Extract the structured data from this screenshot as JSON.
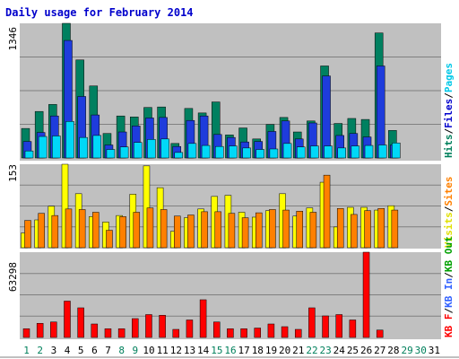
{
  "chart_data": [
    {
      "type": "bar",
      "title": "Daily usage for February 2014",
      "ymax_label": "1346",
      "ylim": [
        0,
        1346
      ],
      "categories": [
        "1",
        "2",
        "3",
        "4",
        "5",
        "6",
        "7",
        "8",
        "9",
        "10",
        "11",
        "12",
        "13",
        "14",
        "15",
        "16",
        "17",
        "18",
        "19",
        "20",
        "21",
        "22",
        "23",
        "24",
        "25",
        "26",
        "27",
        "28",
        "29",
        "30",
        "31"
      ],
      "weekend_days": [
        "1",
        "2",
        "8",
        "9",
        "15",
        "16",
        "22",
        "23",
        "29",
        "30"
      ],
      "right_labels": [
        {
          "text": "Hits",
          "color": "#00805c"
        },
        {
          "text": "/",
          "color": "#000000"
        },
        {
          "text": "Files",
          "color": "#0000cc"
        },
        {
          "text": "/",
          "color": "#000000"
        },
        {
          "text": "Pages",
          "color": "#00c8e8"
        }
      ],
      "series": [
        {
          "name": "Hits",
          "color": "#008060",
          "values": [
            295,
            465,
            535,
            1346,
            980,
            720,
            245,
            420,
            410,
            505,
            510,
            145,
            495,
            450,
            560,
            230,
            300,
            190,
            335,
            405,
            260,
            370,
            920,
            345,
            395,
            385,
            1250,
            275,
            0,
            0,
            0
          ]
        },
        {
          "name": "Files",
          "color": "#1e3cdc",
          "values": [
            165,
            255,
            420,
            1175,
            615,
            430,
            130,
            260,
            320,
            400,
            405,
            115,
            375,
            420,
            235,
            205,
            160,
            165,
            265,
            370,
            190,
            350,
            820,
            225,
            245,
            210,
            920,
            130,
            0,
            0,
            0
          ]
        },
        {
          "name": "Pages",
          "color": "#00d8f8",
          "values": [
            70,
            215,
            220,
            365,
            205,
            225,
            85,
            110,
            155,
            185,
            190,
            55,
            145,
            125,
            115,
            120,
            100,
            85,
            90,
            145,
            110,
            120,
            120,
            100,
            120,
            125,
            130,
            150,
            0,
            0,
            0
          ]
        }
      ]
    },
    {
      "type": "bar",
      "ymax_label": "153",
      "ylim": [
        0,
        153
      ],
      "right_labels": [
        {
          "text": "Visits",
          "color": "#e0e000"
        },
        {
          "text": "/",
          "color": "#000000"
        },
        {
          "text": "Sites",
          "color": "#ff8000"
        }
      ],
      "series": [
        {
          "name": "Visits",
          "color": "#ffff00",
          "values": [
            27,
            51,
            76,
            153,
            99,
            57,
            47,
            59,
            98,
            150,
            110,
            30,
            55,
            71,
            94,
            96,
            65,
            56,
            68,
            99,
            58,
            73,
            120,
            38,
            74,
            74,
            69,
            77,
            0,
            0,
            0
          ]
        },
        {
          "name": "Sites",
          "color": "#ff8000",
          "values": [
            50,
            63,
            59,
            71,
            70,
            65,
            32,
            57,
            65,
            73,
            70,
            58,
            60,
            66,
            66,
            63,
            55,
            64,
            70,
            69,
            67,
            65,
            133,
            72,
            61,
            68,
            72,
            69,
            0,
            0,
            0
          ]
        }
      ]
    },
    {
      "type": "bar",
      "ymax_label": "63298",
      "ylim": [
        0,
        63298
      ],
      "right_labels": [
        {
          "text": "KB F",
          "color": "#ff0000"
        },
        {
          "text": "/",
          "color": "#000000"
        },
        {
          "text": "KB In",
          "color": "#3060ff"
        },
        {
          "text": "/",
          "color": "#000000"
        },
        {
          "text": "KB Out",
          "color": "#00a000"
        }
      ],
      "series": [
        {
          "name": "KB F",
          "color": "#ff0000",
          "values": [
            6500,
            10500,
            11500,
            27000,
            22000,
            10000,
            6500,
            6500,
            14000,
            17000,
            16500,
            6000,
            13000,
            28000,
            11500,
            6500,
            6500,
            7000,
            10000,
            8000,
            6000,
            22000,
            16000,
            17000,
            13000,
            63298,
            5500,
            0,
            0,
            0,
            0
          ]
        }
      ]
    }
  ]
}
